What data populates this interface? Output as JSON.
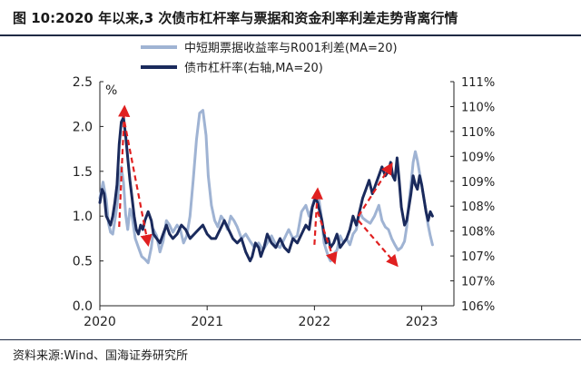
{
  "header": {
    "title": "图 10:2020 年以来,3 次债市杠杆率与票据和资金利率利差走势背离行情"
  },
  "footer": {
    "source": "资料来源:Wind、国海证券研究所"
  },
  "chart_data": {
    "type": "line",
    "title": "图 10:2020 年以来,3 次债市杠杆率与票据和资金利率利差走势背离行情",
    "left_unit": "%",
    "y_left": {
      "min": 0.0,
      "max": 2.5,
      "ticks": [
        "0.0",
        "0.5",
        "1.0",
        "1.5",
        "2.0",
        "2.5"
      ]
    },
    "y_right": {
      "min": 106,
      "max": 111,
      "ticks": [
        "106%",
        "107%",
        "107%",
        "108%",
        "108%",
        "109%",
        "109%",
        "110%",
        "110%",
        "111%"
      ]
    },
    "x_axis": {
      "min": 2020.0,
      "max": 2023.3,
      "ticks": [
        "2020",
        "2021",
        "2022",
        "2023"
      ]
    },
    "grid": false,
    "legend_position": "top-center",
    "series": [
      {
        "name": "中短期票据收益率与R001利差(MA=20)",
        "axis": "left",
        "color": "#9fb3d3",
        "points": [
          [
            2020.0,
            1.2
          ],
          [
            2020.03,
            1.38
          ],
          [
            2020.06,
            1.18
          ],
          [
            2020.08,
            0.92
          ],
          [
            2020.1,
            0.82
          ],
          [
            2020.12,
            0.8
          ],
          [
            2020.14,
            0.95
          ],
          [
            2020.16,
            1.12
          ],
          [
            2020.18,
            1.4
          ],
          [
            2020.2,
            1.55
          ],
          [
            2020.22,
            1.38
          ],
          [
            2020.24,
            1.02
          ],
          [
            2020.26,
            0.85
          ],
          [
            2020.28,
            1.08
          ],
          [
            2020.3,
            1.0
          ],
          [
            2020.33,
            0.75
          ],
          [
            2020.36,
            0.65
          ],
          [
            2020.39,
            0.55
          ],
          [
            2020.42,
            0.52
          ],
          [
            2020.45,
            0.48
          ],
          [
            2020.48,
            0.65
          ],
          [
            2020.5,
            0.85
          ],
          [
            2020.53,
            0.78
          ],
          [
            2020.56,
            0.6
          ],
          [
            2020.59,
            0.72
          ],
          [
            2020.62,
            0.95
          ],
          [
            2020.65,
            0.9
          ],
          [
            2020.68,
            0.82
          ],
          [
            2020.72,
            0.9
          ],
          [
            2020.75,
            0.85
          ],
          [
            2020.78,
            0.7
          ],
          [
            2020.81,
            0.78
          ],
          [
            2020.84,
            1.0
          ],
          [
            2020.87,
            1.4
          ],
          [
            2020.9,
            1.85
          ],
          [
            2020.93,
            2.15
          ],
          [
            2020.96,
            2.18
          ],
          [
            2020.99,
            1.9
          ],
          [
            2021.01,
            1.45
          ],
          [
            2021.04,
            1.12
          ],
          [
            2021.07,
            0.95
          ],
          [
            2021.1,
            0.88
          ],
          [
            2021.13,
            1.0
          ],
          [
            2021.16,
            0.95
          ],
          [
            2021.19,
            0.85
          ],
          [
            2021.22,
            1.0
          ],
          [
            2021.25,
            0.95
          ],
          [
            2021.28,
            0.88
          ],
          [
            2021.32,
            0.75
          ],
          [
            2021.36,
            0.8
          ],
          [
            2021.4,
            0.72
          ],
          [
            2021.44,
            0.65
          ],
          [
            2021.48,
            0.7
          ],
          [
            2021.52,
            0.62
          ],
          [
            2021.56,
            0.7
          ],
          [
            2021.6,
            0.78
          ],
          [
            2021.64,
            0.68
          ],
          [
            2021.68,
            0.65
          ],
          [
            2021.72,
            0.75
          ],
          [
            2021.76,
            0.85
          ],
          [
            2021.8,
            0.75
          ],
          [
            2021.84,
            0.78
          ],
          [
            2021.88,
            1.05
          ],
          [
            2021.92,
            1.12
          ],
          [
            2021.95,
            1.0
          ],
          [
            2021.98,
            1.1
          ],
          [
            2022.01,
            1.25
          ],
          [
            2022.03,
            1.28
          ],
          [
            2022.05,
            1.12
          ],
          [
            2022.07,
            0.95
          ],
          [
            2022.09,
            0.7
          ],
          [
            2022.11,
            0.62
          ],
          [
            2022.13,
            0.55
          ],
          [
            2022.15,
            0.5
          ],
          [
            2022.18,
            0.58
          ],
          [
            2022.21,
            0.62
          ],
          [
            2022.24,
            0.78
          ],
          [
            2022.27,
            0.7
          ],
          [
            2022.3,
            0.75
          ],
          [
            2022.33,
            0.68
          ],
          [
            2022.36,
            0.8
          ],
          [
            2022.39,
            0.85
          ],
          [
            2022.42,
            1.05
          ],
          [
            2022.45,
            0.98
          ],
          [
            2022.48,
            0.95
          ],
          [
            2022.52,
            0.92
          ],
          [
            2022.56,
            1.0
          ],
          [
            2022.6,
            1.12
          ],
          [
            2022.63,
            0.95
          ],
          [
            2022.66,
            0.88
          ],
          [
            2022.69,
            0.85
          ],
          [
            2022.72,
            0.75
          ],
          [
            2022.75,
            0.68
          ],
          [
            2022.78,
            0.62
          ],
          [
            2022.81,
            0.65
          ],
          [
            2022.84,
            0.72
          ],
          [
            2022.86,
            0.88
          ],
          [
            2022.88,
            1.15
          ],
          [
            2022.9,
            1.35
          ],
          [
            2022.92,
            1.6
          ],
          [
            2022.94,
            1.72
          ],
          [
            2022.96,
            1.62
          ],
          [
            2022.98,
            1.48
          ],
          [
            2023.0,
            1.35
          ],
          [
            2023.02,
            1.2
          ],
          [
            2023.04,
            1.05
          ],
          [
            2023.06,
            0.9
          ],
          [
            2023.08,
            0.78
          ],
          [
            2023.1,
            0.68
          ]
        ]
      },
      {
        "name": "债市杠杆率(右轴,MA=20)",
        "axis": "right",
        "color": "#1a2a5c",
        "points": [
          [
            2020.0,
            108.3
          ],
          [
            2020.02,
            108.6
          ],
          [
            2020.04,
            108.5
          ],
          [
            2020.06,
            108.0
          ],
          [
            2020.08,
            107.9
          ],
          [
            2020.1,
            107.8
          ],
          [
            2020.12,
            108.0
          ],
          [
            2020.14,
            108.3
          ],
          [
            2020.16,
            108.7
          ],
          [
            2020.18,
            109.6
          ],
          [
            2020.2,
            110.1
          ],
          [
            2020.22,
            110.2
          ],
          [
            2020.24,
            109.8
          ],
          [
            2020.26,
            109.3
          ],
          [
            2020.28,
            108.8
          ],
          [
            2020.3,
            108.4
          ],
          [
            2020.32,
            108.0
          ],
          [
            2020.34,
            107.7
          ],
          [
            2020.36,
            107.6
          ],
          [
            2020.38,
            107.8
          ],
          [
            2020.4,
            107.7
          ],
          [
            2020.42,
            107.9
          ],
          [
            2020.45,
            108.1
          ],
          [
            2020.48,
            107.9
          ],
          [
            2020.5,
            107.6
          ],
          [
            2020.53,
            107.5
          ],
          [
            2020.56,
            107.4
          ],
          [
            2020.59,
            107.6
          ],
          [
            2020.62,
            107.8
          ],
          [
            2020.65,
            107.6
          ],
          [
            2020.68,
            107.5
          ],
          [
            2020.72,
            107.6
          ],
          [
            2020.76,
            107.8
          ],
          [
            2020.8,
            107.7
          ],
          [
            2020.84,
            107.5
          ],
          [
            2020.88,
            107.6
          ],
          [
            2020.92,
            107.7
          ],
          [
            2020.96,
            107.8
          ],
          [
            2021.0,
            107.6
          ],
          [
            2021.04,
            107.5
          ],
          [
            2021.08,
            107.5
          ],
          [
            2021.12,
            107.7
          ],
          [
            2021.16,
            107.9
          ],
          [
            2021.2,
            107.7
          ],
          [
            2021.24,
            107.5
          ],
          [
            2021.28,
            107.4
          ],
          [
            2021.32,
            107.5
          ],
          [
            2021.36,
            107.2
          ],
          [
            2021.4,
            107.0
          ],
          [
            2021.42,
            107.1
          ],
          [
            2021.45,
            107.4
          ],
          [
            2021.48,
            107.3
          ],
          [
            2021.5,
            107.1
          ],
          [
            2021.53,
            107.3
          ],
          [
            2021.56,
            107.6
          ],
          [
            2021.6,
            107.4
          ],
          [
            2021.64,
            107.3
          ],
          [
            2021.68,
            107.5
          ],
          [
            2021.72,
            107.3
          ],
          [
            2021.76,
            107.2
          ],
          [
            2021.8,
            107.5
          ],
          [
            2021.84,
            107.4
          ],
          [
            2021.88,
            107.6
          ],
          [
            2021.92,
            107.8
          ],
          [
            2021.95,
            107.7
          ],
          [
            2021.98,
            108.2
          ],
          [
            2022.01,
            108.4
          ],
          [
            2022.03,
            108.3
          ],
          [
            2022.05,
            108.1
          ],
          [
            2022.07,
            107.9
          ],
          [
            2022.09,
            107.6
          ],
          [
            2022.11,
            107.4
          ],
          [
            2022.13,
            107.5
          ],
          [
            2022.15,
            107.3
          ],
          [
            2022.18,
            107.4
          ],
          [
            2022.21,
            107.6
          ],
          [
            2022.24,
            107.3
          ],
          [
            2022.27,
            107.4
          ],
          [
            2022.3,
            107.5
          ],
          [
            2022.33,
            107.7
          ],
          [
            2022.36,
            108.0
          ],
          [
            2022.39,
            107.8
          ],
          [
            2022.42,
            108.1
          ],
          [
            2022.45,
            108.4
          ],
          [
            2022.48,
            108.6
          ],
          [
            2022.51,
            108.8
          ],
          [
            2022.54,
            108.5
          ],
          [
            2022.57,
            108.7
          ],
          [
            2022.6,
            108.9
          ],
          [
            2022.63,
            109.1
          ],
          [
            2022.66,
            108.9
          ],
          [
            2022.69,
            109.0
          ],
          [
            2022.71,
            109.2
          ],
          [
            2022.73,
            108.9
          ],
          [
            2022.75,
            108.8
          ],
          [
            2022.77,
            109.3
          ],
          [
            2022.79,
            108.8
          ],
          [
            2022.81,
            108.2
          ],
          [
            2022.84,
            107.8
          ],
          [
            2022.86,
            107.9
          ],
          [
            2022.88,
            108.2
          ],
          [
            2022.9,
            108.5
          ],
          [
            2022.92,
            108.9
          ],
          [
            2022.94,
            108.7
          ],
          [
            2022.96,
            108.6
          ],
          [
            2022.98,
            108.9
          ],
          [
            2023.0,
            108.7
          ],
          [
            2023.02,
            108.4
          ],
          [
            2023.04,
            108.1
          ],
          [
            2023.06,
            107.9
          ],
          [
            2023.08,
            108.1
          ],
          [
            2023.1,
            108.0
          ]
        ]
      }
    ],
    "annotations": [
      {
        "type": "arrow",
        "color": "#e02020",
        "style": "dashed",
        "from": [
          2020.18,
          0.88
        ],
        "to": [
          2020.23,
          2.22
        ],
        "axis": "left"
      },
      {
        "type": "arrow",
        "color": "#e02020",
        "style": "dashed",
        "from": [
          2020.23,
          2.05
        ],
        "to": [
          2020.45,
          0.68
        ],
        "axis": "left"
      },
      {
        "type": "arrow",
        "color": "#e02020",
        "style": "dashed",
        "from": [
          2022.0,
          0.68
        ],
        "to": [
          2022.03,
          1.3
        ],
        "axis": "left"
      },
      {
        "type": "arrow",
        "color": "#e02020",
        "style": "dashed",
        "from": [
          2022.03,
          1.05
        ],
        "to": [
          2022.19,
          0.48
        ],
        "axis": "left"
      },
      {
        "type": "arrow",
        "color": "#e02020",
        "style": "dashed",
        "from": [
          2022.41,
          1.0
        ],
        "to": [
          2022.72,
          1.58
        ],
        "axis": "left"
      },
      {
        "type": "arrow",
        "color": "#e02020",
        "style": "dashed",
        "from": [
          2022.41,
          0.95
        ],
        "to": [
          2022.77,
          0.45
        ],
        "axis": "left"
      }
    ]
  }
}
